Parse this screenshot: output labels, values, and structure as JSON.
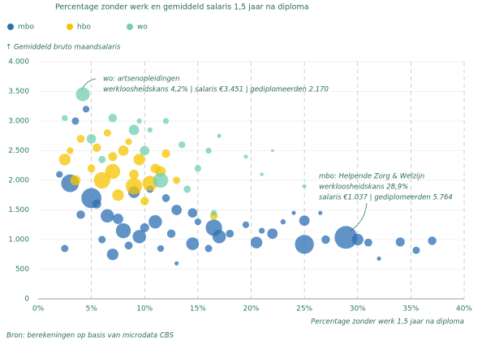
{
  "chart_data": {
    "type": "bubble",
    "subtitle": "Percentage zonder werk en gemiddeld salaris 1,5 jaar na diploma",
    "y_label": "Gemiddeld bruto maandsalaris",
    "x_label": "Percentage zonder werk 1,5 jaar na diploma",
    "source": "Bron: berekeningen op basis van microdata CBS",
    "annotations": [
      {
        "lines": [
          "wo: artsenopleidingen",
          "werkloosheidskans 4,2% | salaris €3.451 | gediplomeerden 2.170"
        ]
      },
      {
        "lines": [
          "mbo: Helpende Zorg & Welzijn",
          "werkloosheidskans 28,9%",
          "salaris €1.037 | gediplomeerden 5.764"
        ]
      }
    ],
    "xlim": [
      0,
      40
    ],
    "xticks": [
      {
        "value": 0,
        "label": "0%"
      },
      {
        "value": 5,
        "label": "5%"
      },
      {
        "value": 10,
        "label": "10%"
      },
      {
        "value": 15,
        "label": "15%"
      },
      {
        "value": 20,
        "label": "20%"
      },
      {
        "value": 25,
        "label": "25%"
      },
      {
        "value": 30,
        "label": "30%"
      },
      {
        "value": 35,
        "label": "35%"
      },
      {
        "value": 40,
        "label": "40%"
      }
    ],
    "ylim": [
      0,
      4000
    ],
    "yticks": [
      0,
      500,
      {
        "value": 1000,
        "label": "1.000"
      },
      {
        "value": 1500,
        "label": "1.500"
      },
      {
        "value": 2000,
        "label": "2.000"
      },
      {
        "value": 2500,
        "label": "2.500"
      },
      {
        "value": 3000,
        "label": "3.000"
      },
      {
        "value": 3500,
        "label": "3.500"
      },
      {
        "value": 4000,
        "label": "4.000"
      }
    ],
    "grid": true,
    "series": [
      {
        "name": "mbo",
        "color": "#2c6fb3",
        "x": [
          28.9,
          25,
          5,
          3,
          6.5,
          8,
          9.5,
          7,
          11,
          14.5,
          16.5,
          17,
          20.5,
          22,
          25,
          27,
          31,
          34,
          37,
          35.5,
          30,
          4,
          2,
          2.5,
          10.5,
          12,
          14.5,
          18,
          19.5,
          21,
          23,
          13,
          9,
          7.5,
          10,
          12.5,
          15,
          6,
          8.5,
          11.5,
          16,
          5.5,
          3.5,
          4.5,
          13,
          32,
          24,
          26.5
        ],
        "values": [
          1037,
          920,
          1700,
          1950,
          1400,
          1150,
          1050,
          750,
          1300,
          930,
          1200,
          1050,
          950,
          1100,
          1320,
          1000,
          950,
          960,
          980,
          820,
          1000,
          1420,
          2100,
          850,
          1850,
          1700,
          1450,
          1100,
          1250,
          1150,
          1300,
          1500,
          1800,
          1350,
          1200,
          1100,
          1300,
          1000,
          900,
          850,
          850,
          1600,
          3000,
          3200,
          600,
          680,
          1450,
          1450
        ],
        "sizes": [
          5764,
          4000,
          4500,
          3500,
          2000,
          2500,
          2000,
          1500,
          2000,
          1800,
          3000,
          2000,
          1500,
          1200,
          1200,
          800,
          700,
          900,
          800,
          600,
          1500,
          800,
          500,
          600,
          600,
          700,
          1000,
          700,
          500,
          400,
          300,
          1200,
          1500,
          1200,
          900,
          800,
          500,
          600,
          700,
          500,
          600,
          900,
          600,
          500,
          200,
          200,
          200,
          200
        ]
      },
      {
        "name": "hbo",
        "color": "#f5c400",
        "x": [
          2.5,
          3.5,
          6,
          7,
          9,
          10.5,
          8,
          9.5,
          11,
          7.5,
          5.5,
          12,
          4,
          6.5,
          8.5,
          13,
          10,
          16.5,
          3,
          7,
          11.5,
          5,
          9
        ],
        "values": [
          2350,
          2000,
          2000,
          2150,
          1900,
          1950,
          2500,
          2350,
          2200,
          1750,
          2550,
          2450,
          2700,
          2800,
          2650,
          2000,
          1650,
          1400,
          2500,
          2400,
          2150,
          2200,
          2100
        ],
        "sizes": [
          1500,
          1200,
          3000,
          2500,
          3000,
          2500,
          1200,
          1500,
          1000,
          1500,
          800,
          800,
          700,
          600,
          500,
          600,
          800,
          700,
          500,
          900,
          1200,
          700,
          1000
        ]
      },
      {
        "name": "wo",
        "color": "#6fcfb0",
        "x": [
          4.2,
          5,
          7,
          9,
          10,
          11.5,
          12,
          13.5,
          15,
          14,
          16,
          17,
          19.5,
          21,
          6,
          9.5,
          2.5,
          10.5,
          16.5,
          25,
          22
        ],
        "values": [
          3451,
          2700,
          3050,
          2850,
          2500,
          2000,
          3000,
          2600,
          2200,
          1850,
          2500,
          2750,
          2400,
          2100,
          2350,
          3000,
          3050,
          2850,
          1450,
          1900,
          2500
        ],
        "sizes": [
          2170,
          1000,
          800,
          1200,
          1000,
          2500,
          400,
          500,
          500,
          600,
          400,
          200,
          200,
          150,
          600,
          300,
          400,
          300,
          400,
          200,
          100
        ]
      }
    ]
  }
}
